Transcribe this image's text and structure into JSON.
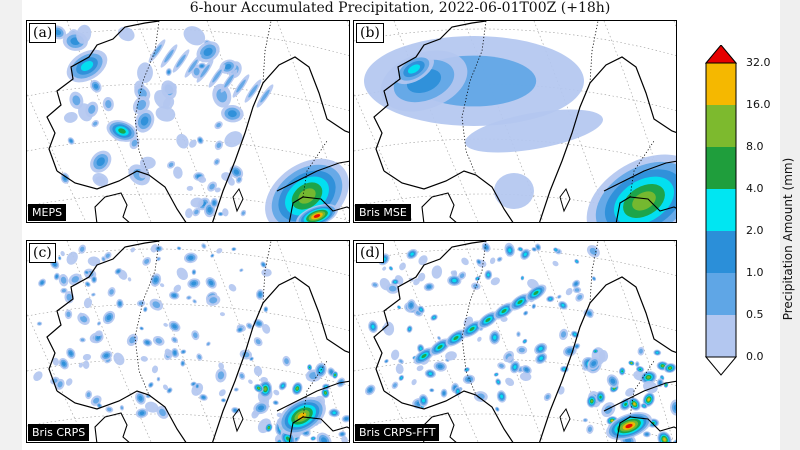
{
  "title": "6-hour Accumulated Precipitation, 2022-06-01T00Z (+18h)",
  "panels": [
    {
      "tag": "(a)",
      "model": "MEPS"
    },
    {
      "tag": "(b)",
      "model": "Bris MSE"
    },
    {
      "tag": "(c)",
      "model": "Bris CRPS"
    },
    {
      "tag": "(d)",
      "model": "Bris CRPS-FFT"
    }
  ],
  "colorbar": {
    "title": "Precipitation Amount (mm)",
    "ticks": [
      "0.0",
      "0.5",
      "1.0",
      "2.0",
      "4.0",
      "8.0",
      "16.0",
      "32.0"
    ],
    "colors": [
      "#ffffff",
      "#b3c7f0",
      "#5fa6e6",
      "#2b8fd9",
      "#00e6f2",
      "#1f9e3c",
      "#7dba2e",
      "#f5b800",
      "#e60000"
    ]
  }
}
